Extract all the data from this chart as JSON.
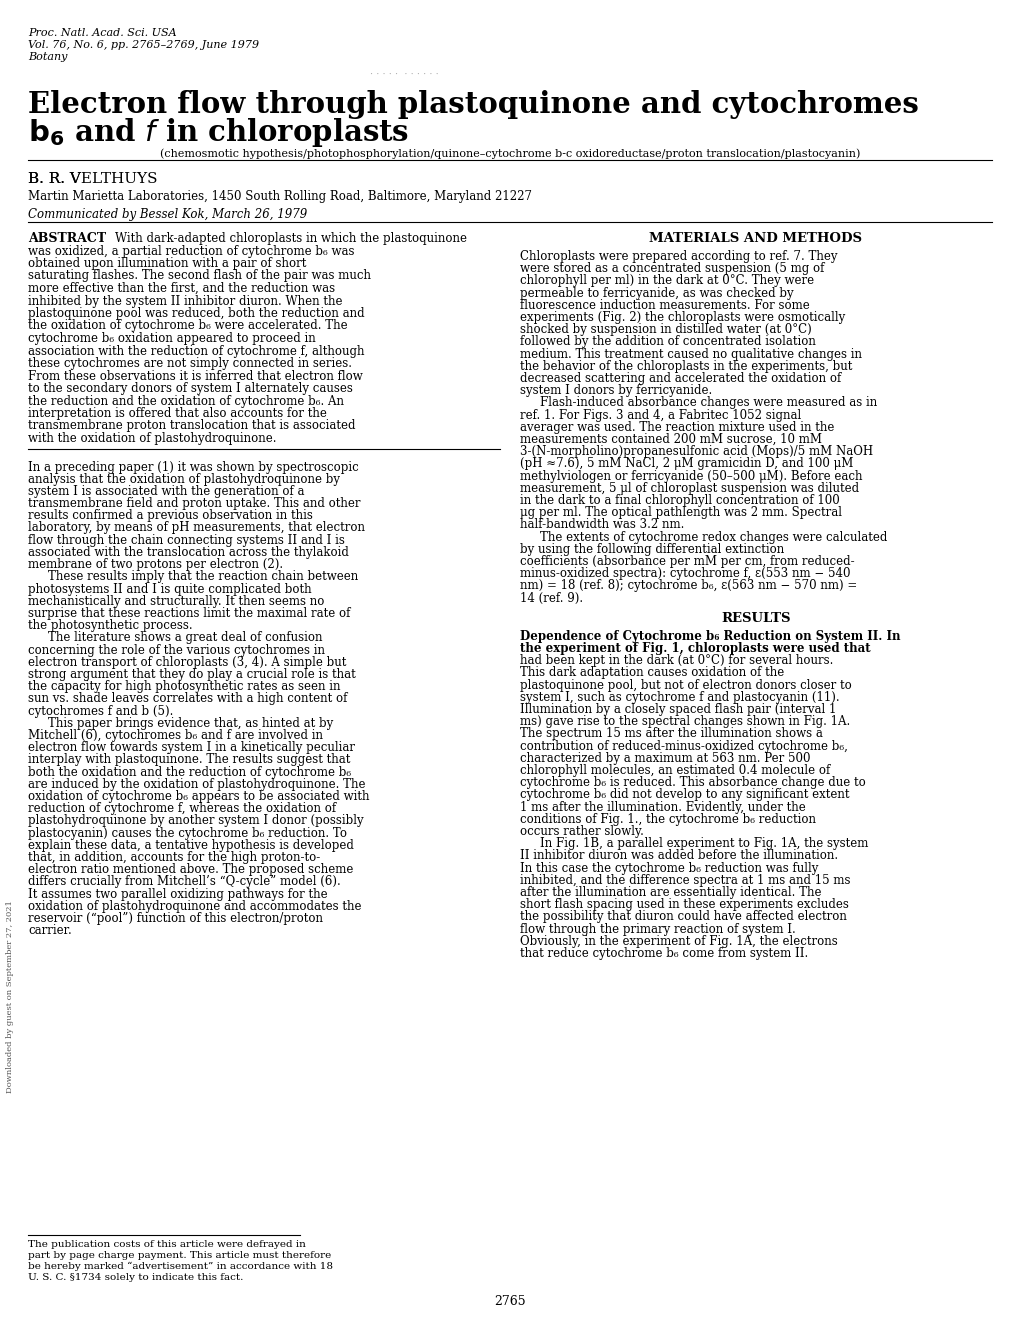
{
  "header_line1": "Proc. Natl. Acad. Sci. USA",
  "header_line2": "Vol. 76, No. 6, pp. 2765–2769, June 1979",
  "header_line3": "Botany",
  "title_line1": "Electron flow through plastoquinone and cytochromes",
  "title_line2": "b₆ and f in chloroplasts",
  "subtitle": "(chemosmotic hypothesis/photophosphorylation/quinone–cytochrome b-c oxidoreductase/proton translocation/plastocyanin)",
  "author": "B. R. VELTHUYS",
  "affiliation": "Martin Marietta Laboratories, 1450 South Rolling Road, Baltimore, Maryland 21227",
  "communicated": "Communicated by Bessel Kok, March 26, 1979",
  "abstract_label": "ABSTRACT",
  "abstract_text": "With dark-adapted chloroplasts in which the plastoquinone was oxidized, a partial reduction of cytochrome b₆ was obtained upon illumination with a pair of short saturating flashes. The second flash of the pair was much more effective than the first, and the reduction was inhibited by the system II inhibitor diuron. When the plastoquinone pool was reduced, both the reduction and the oxidation of cytochrome b₆ were accelerated. The cytochrome b₆ oxidation appeared to proceed in association with the reduction of cytochrome f, although these cytochromes are not simply connected in series. From these observations it is inferred that electron flow to the secondary donors of system I alternately causes the reduction and the oxidation of cytochrome b₆. An interpretation is offered that also accounts for the transmembrane proton translocation that is associated with the oxidation of plastohydroquinone.",
  "col1_intro": "In a preceding paper (1) it was shown by spectroscopic analysis that the oxidation of plastohydroquinone by system I is associated with the generation of a transmembrane field and proton uptake. This and other results confirmed a previous observation in this laboratory, by means of pH measurements, that electron flow through the chain connecting systems II and I is associated with the translocation across the thylakoid membrane of two protons per electron (2).\n    These results imply that the reaction chain between photosystems II and I is quite complicated both mechanistically and structurally. It then seems no surprise that these reactions limit the maximal rate of the photosynthetic process.\n    The literature shows a great deal of confusion concerning the role of the various cytochromes in electron transport of chloroplasts (3, 4). A simple but strong argument that they do play a crucial role is that the capacity for high photosynthetic rates as seen in sun vs. shade leaves correlates with a high content of cytochromes f and b (5).\n    This paper brings evidence that, as hinted at by Mitchell (6), cytochromes b₆ and f are involved in electron flow towards system I in a kinetically peculiar interplay with plastoquinone. The results suggest that both the oxidation and the reduction of cytochrome b₆ are induced by the oxidation of plastohydroquinone. The oxidation of cytochrome b₆ appears to be associated with reduction of cytochrome f, whereas the oxidation of plastohydroquinone by another system I donor (possibly plastocyanin) causes the cytochrome b₆ reduction. To explain these data, a tentative hypothesis is developed that, in addition, accounts for the high proton-to-electron ratio mentioned above. The proposed scheme differs crucially from Mitchell’s “Q-cycle” model (6). It assumes two parallel oxidizing pathways for the oxidation of plastohydroquinone and accommodates the reservoir (“pool”) function of this electron/proton carrier.",
  "col1_footnote": "The publication costs of this article were defrayed in part by page charge payment. This article must therefore be hereby marked “advertisement” in accordance with 18 U. S. C. §1734 solely to indicate this fact.",
  "col2_methods_title": "MATERIALS AND METHODS",
  "col2_methods_text": "Chloroplasts were prepared according to ref. 7. They were stored as a concentrated suspension (5 mg of chlorophyll per ml) in the dark at 0°C. They were permeable to ferricyanide, as was checked by fluorescence induction measurements. For some experiments (Fig. 2) the chloroplasts were osmotically shocked by suspension in distilled water (at 0°C) followed by the addition of concentrated isolation medium. This treatment caused no qualitative changes in the behavior of the chloroplasts in the experiments, but decreased scattering and accelerated the oxidation of system I donors by ferricyanide.\n    Flash-induced absorbance changes were measured as in ref. 1. For Figs. 3 and 4, a Fabritec 1052 signal averager was used. The reaction mixture used in the measurements contained 200 mM sucrose, 10 mM 3-(N-morpholino)propanesulfonic acid (Mops)/5 mM NaOH (pH ≈7.6), 5 mM NaCl, 2 μM gramicidin D, and 100 μM methylviologen or ferricyanide (50–500 μM). Before each measurement, 5 μl of chloroplast suspension was diluted in the dark to a final chlorophyll concentration of 100 μg per ml. The optical pathlength was 2 mm. Spectral half-bandwidth was 3.2 nm.\n    The extents of cytochrome redox changes were calculated by using the following differential extinction coefficients (absorbance per mM per cm, from reduced-minus-oxidized spectra): cytochrome f, ε(553 nm − 540 nm) = 18 (ref. 8); cytochrome b₆, ε(563 nm − 570 nm) = 14 (ref. 9).",
  "col2_results_title": "RESULTS",
  "col2_results_text": "Dependence of Cytochrome b₆ Reduction on System II. In the experiment of Fig. 1, chloroplasts were used that had been kept in the dark (at 0°C) for several hours. This dark adaptation causes oxidation of the plastoquinone pool, but not of electron donors closer to system I, such as cytochrome f and plastocyanin (11). Illumination by a closely spaced flash pair (interval 1 ms) gave rise to the spectral changes shown in Fig. 1A. The spectrum 15 ms after the illumination shows a contribution of reduced-minus-oxidized cytochrome b₆, characterized by a maximum at 563 nm. Per 500 chlorophyll molecules, an estimated 0.4 molecule of cytochrome b₆ is reduced. This absorbance change due to cytochrome b₆ did not develop to any significant extent 1 ms after the illumination. Evidently, under the conditions of Fig. 1., the cytochrome b₆ reduction occurs rather slowly.\n    In Fig. 1B, a parallel experiment to Fig. 1A, the system II inhibitor diuron was added before the illumination. In this case the cytochrome b₆ reduction was fully inhibited, and the difference spectra at 1 ms and 15 ms after the illumination are essentially identical. The short flash spacing used in these experiments excludes the possibility that diuron could have affected electron flow through the primary reaction of system I. Obviously, in the experiment of Fig. 1A, the electrons that reduce cytochrome b₆ come from system II.",
  "page_number": "2765",
  "background_color": "#ffffff",
  "text_color": "#000000"
}
